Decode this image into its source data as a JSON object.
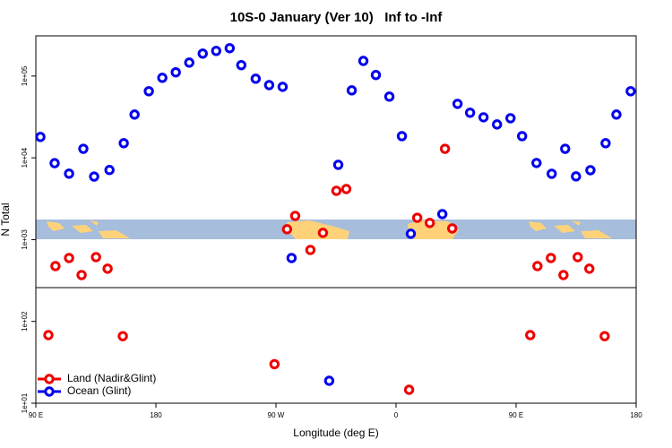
{
  "chart_data": {
    "type": "scatter",
    "title": "10S-0 January (Ver 10)   Inf to -Inf",
    "x_label": "Longitude (deg E)",
    "y_label": "N Total",
    "log_y": true,
    "legend": "bottom-left",
    "xlim": [
      90,
      540
    ],
    "xticks": [
      {
        "value": 90,
        "label": "90 E"
      },
      180,
      {
        "value": 270,
        "label": "90 W"
      },
      {
        "value": 360,
        "label": "0"
      },
      {
        "value": 450,
        "label": "90 E"
      },
      {
        "value": 540,
        "label": "180"
      }
    ],
    "ylim": [
      10,
      310000
    ],
    "yticks": [
      {
        "value": 10,
        "label": "1e+01"
      },
      {
        "value": 100,
        "label": "1e+02"
      },
      {
        "value": 1000,
        "label": "1e+03"
      },
      {
        "value": 10000,
        "label": "1e+04"
      },
      {
        "value": 100000,
        "label": "1e+05"
      }
    ],
    "series": [
      {
        "name": "Land (Nadir&Glint)",
        "color": "#ee0000",
        "x": [
          99.4,
          104.7,
          114.9,
          124.3,
          135.1,
          143.8,
          155.2,
          268.9,
          278.3,
          284.4,
          295.8,
          305.2,
          315.3,
          322.7,
          369.8,
          375.9,
          385.3,
          396.7,
          402.1,
          460.6,
          466.0,
          476.1,
          485.5,
          496.2,
          504.9,
          516.4
        ],
        "values": [
          68,
          475,
          596,
          369,
          611,
          441,
          66,
          30,
          1340,
          1950,
          748,
          1210,
          3950,
          4160,
          14.6,
          1850,
          1600,
          12900,
          1370,
          68,
          475,
          596,
          369,
          611,
          441,
          66
        ]
      },
      {
        "name": "Ocean (Glint)",
        "color": "#0000ee",
        "x": [
          93.4,
          104.1,
          114.9,
          125.6,
          133.7,
          145.2,
          155.9,
          164.0,
          174.7,
          184.8,
          194.9,
          205.0,
          215.1,
          225.2,
          235.3,
          244.0,
          254.8,
          264.9,
          275.0,
          281.7,
          309.9,
          316.7,
          326.8,
          335.5,
          344.9,
          355.0,
          364.4,
          371.1,
          394.7,
          406.1,
          415.5,
          425.6,
          435.7,
          445.8,
          454.5,
          465.3,
          476.7,
          486.8,
          494.9,
          505.7,
          517.1,
          525.2,
          535.9
        ],
        "values": [
          18000,
          8600,
          6400,
          12900,
          5900,
          7100,
          15100,
          33800,
          65200,
          95100,
          111000,
          146000,
          188000,
          203000,
          219000,
          136000,
          92700,
          77600,
          73800,
          596,
          18.8,
          8220,
          66800,
          153000,
          103000,
          56000,
          18400,
          1180,
          2050,
          45700,
          35600,
          31300,
          25600,
          30500,
          18400,
          8650,
          6380,
          12900,
          5930,
          7060,
          15100,
          33800,
          65200
        ]
      }
    ]
  }
}
